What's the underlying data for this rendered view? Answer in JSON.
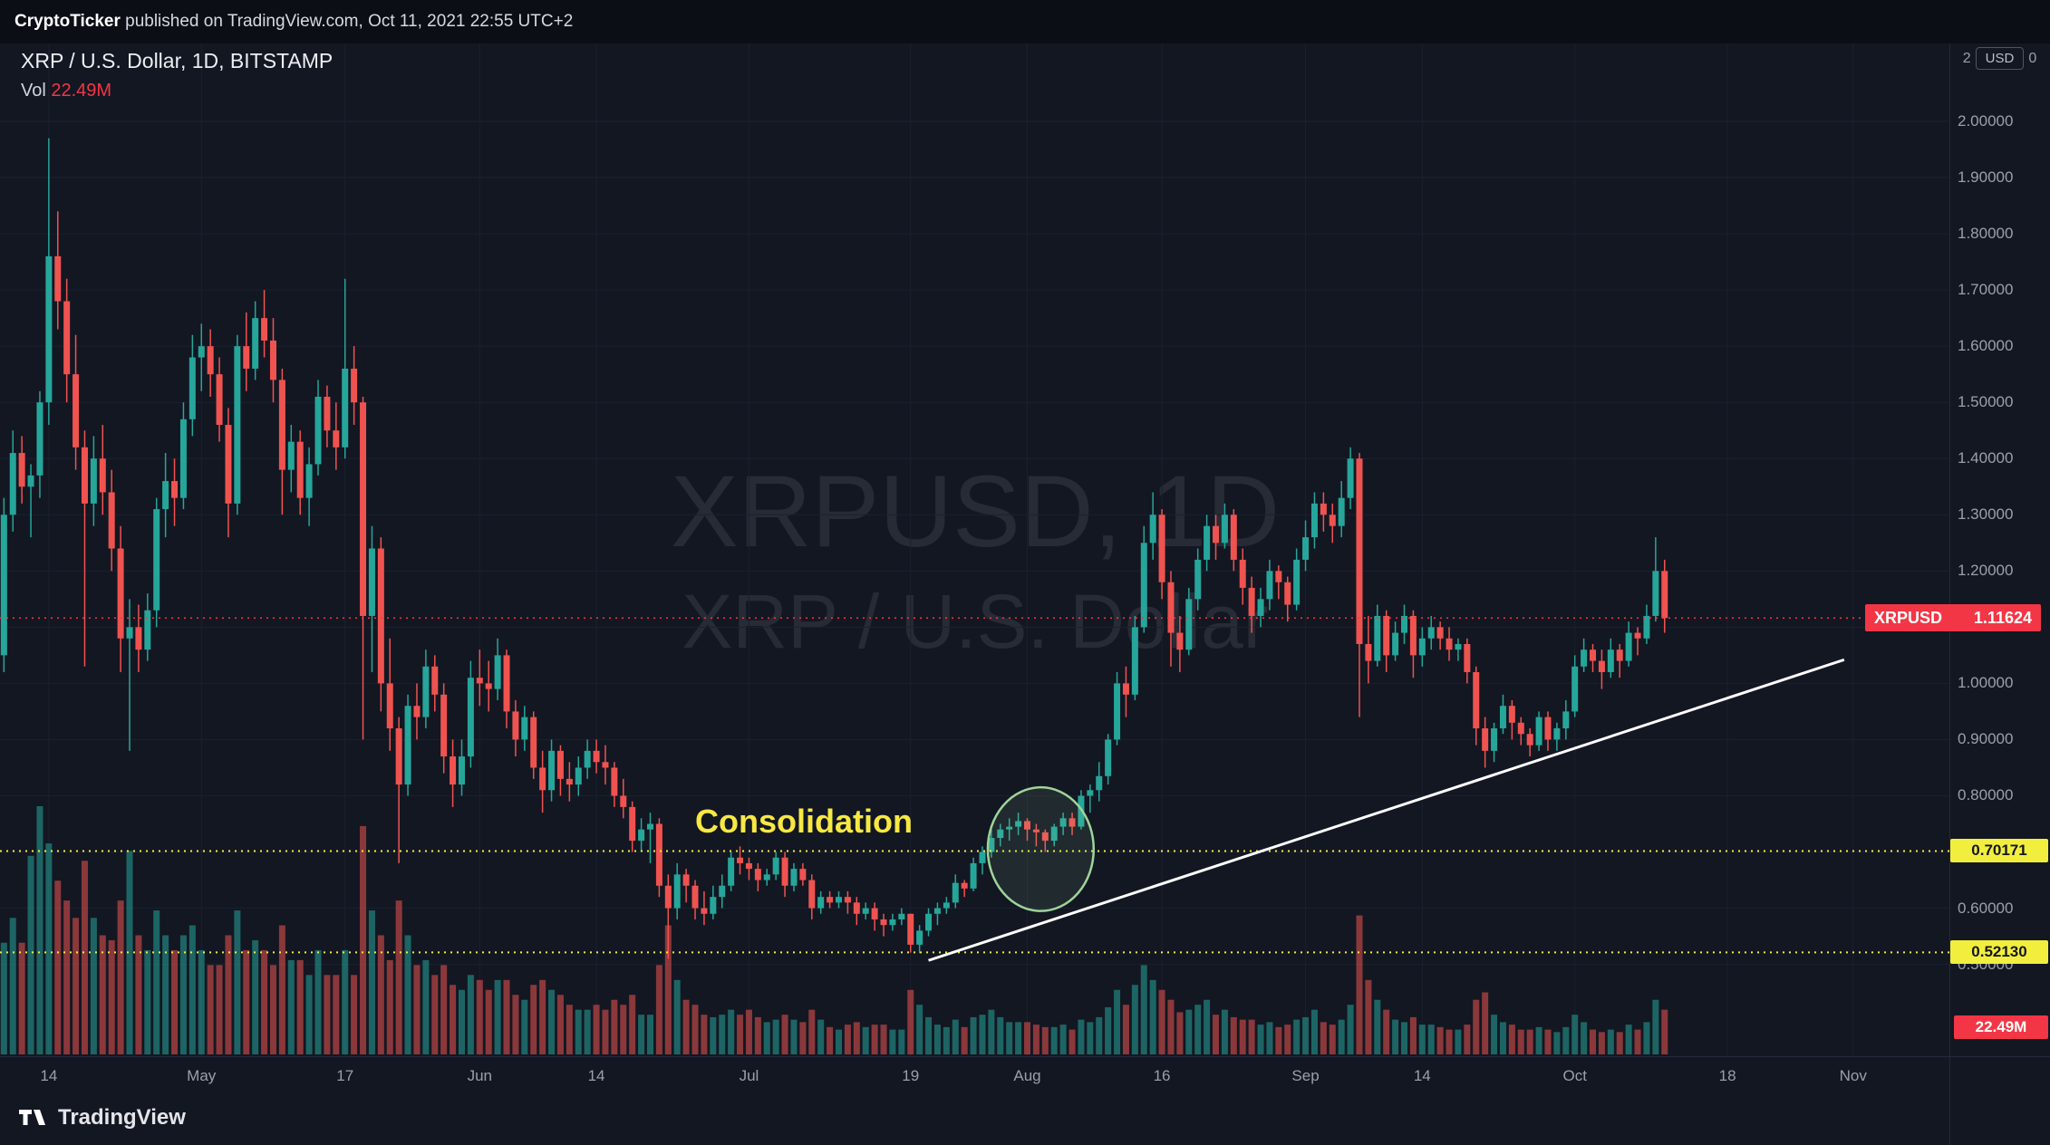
{
  "attribution": {
    "user": "CryptoTicker",
    "rest": " published on TradingView.com, Oct 11, 2021 22:55 UTC+2"
  },
  "legend": {
    "symbol_line": "XRP / U.S. Dollar, 1D, BITSTAMP",
    "vol_label": "Vol",
    "vol_value": "22.49M"
  },
  "watermark": {
    "line1": "XRPUSD, 1D",
    "line2": "XRP / U.S. Dollar"
  },
  "price_axis": {
    "top": {
      "left": "2",
      "button": "USD",
      "right": "0"
    },
    "ticks": [
      "2.00000",
      "1.90000",
      "1.80000",
      "1.70000",
      "1.60000",
      "1.50000",
      "1.40000",
      "1.30000",
      "1.20000",
      "1.10000",
      "1.00000",
      "0.90000",
      "0.80000",
      "0.70000",
      "0.60000",
      "0.50000"
    ],
    "tick_values": [
      2.0,
      1.9,
      1.8,
      1.7,
      1.6,
      1.5,
      1.4,
      1.3,
      1.2,
      1.1,
      1.0,
      0.9,
      0.8,
      0.7,
      0.6,
      0.5
    ]
  },
  "time_axis": {
    "labels": [
      {
        "text": "14",
        "index": 5
      },
      {
        "text": "May",
        "index": 22
      },
      {
        "text": "17",
        "index": 38
      },
      {
        "text": "Jun",
        "index": 53
      },
      {
        "text": "14",
        "index": 66
      },
      {
        "text": "Jul",
        "index": 83
      },
      {
        "text": "19",
        "index": 101
      },
      {
        "text": "Aug",
        "index": 114
      },
      {
        "text": "16",
        "index": 129
      },
      {
        "text": "Sep",
        "index": 145
      },
      {
        "text": "14",
        "index": 158
      },
      {
        "text": "Oct",
        "index": 175
      },
      {
        "text": "18",
        "index": 192
      },
      {
        "text": "Nov",
        "index": 206
      }
    ]
  },
  "price_labels": {
    "symbol_label": {
      "symbol": "XRPUSD",
      "price": "1.11624",
      "value": 1.11624,
      "bg": "#f23645"
    },
    "levels": [
      {
        "text": "0.70171",
        "value": 0.70171,
        "bg": "#f2ee3e"
      },
      {
        "text": "0.52130",
        "value": 0.5213,
        "bg": "#f2ee3e"
      }
    ],
    "volume_label": {
      "text": "22.49M",
      "bg": "#f23645"
    }
  },
  "annotations": {
    "consolidation": {
      "text": "Consolidation",
      "color": "#f7e843",
      "index": 77,
      "price": 0.75
    },
    "ellipse": {
      "center_index": 115.5,
      "center_price": 0.705,
      "rx_days": 5.9,
      "ry_price": 0.11,
      "stroke": "#9ed49b"
    },
    "trendline": {
      "x1_index": 103,
      "y1_price": 0.507,
      "x2_index": 205,
      "y2_price": 1.042,
      "color": "#ffffff"
    }
  },
  "footer": {
    "brand": "TradingView"
  },
  "chart_data": {
    "type": "candlestick",
    "symbol": "XRPUSD",
    "interval": "1D",
    "exchange": "BITSTAMP",
    "last_price": 1.11624,
    "visible_price_range": [
      0.34,
      2.14
    ],
    "support_levels": [
      0.70171,
      0.5213
    ],
    "colors": {
      "up": "#26a69a",
      "down": "#ef5350",
      "bg": "#131722"
    },
    "candles": [
      [
        1.05,
        1.33,
        1.02,
        1.3,
        45
      ],
      [
        1.3,
        1.45,
        1.27,
        1.41,
        55
      ],
      [
        1.41,
        1.44,
        1.32,
        1.35,
        45
      ],
      [
        1.35,
        1.39,
        1.26,
        1.37,
        80
      ],
      [
        1.37,
        1.52,
        1.33,
        1.5,
        100
      ],
      [
        1.5,
        1.97,
        1.46,
        1.76,
        85
      ],
      [
        1.76,
        1.84,
        1.63,
        1.68,
        70
      ],
      [
        1.68,
        1.72,
        1.5,
        1.55,
        62
      ],
      [
        1.55,
        1.62,
        1.38,
        1.42,
        55
      ],
      [
        1.42,
        1.45,
        1.03,
        1.32,
        78
      ],
      [
        1.32,
        1.44,
        1.28,
        1.4,
        55
      ],
      [
        1.4,
        1.46,
        1.3,
        1.34,
        48
      ],
      [
        1.34,
        1.38,
        1.2,
        1.24,
        46
      ],
      [
        1.24,
        1.28,
        1.02,
        1.08,
        62
      ],
      [
        1.08,
        1.15,
        0.88,
        1.1,
        82
      ],
      [
        1.1,
        1.14,
        1.02,
        1.06,
        48
      ],
      [
        1.06,
        1.16,
        1.04,
        1.13,
        42
      ],
      [
        1.13,
        1.33,
        1.1,
        1.31,
        58
      ],
      [
        1.31,
        1.41,
        1.26,
        1.36,
        48
      ],
      [
        1.36,
        1.4,
        1.28,
        1.33,
        42
      ],
      [
        1.33,
        1.5,
        1.31,
        1.47,
        48
      ],
      [
        1.47,
        1.62,
        1.44,
        1.58,
        52
      ],
      [
        1.58,
        1.64,
        1.52,
        1.6,
        42
      ],
      [
        1.6,
        1.63,
        1.51,
        1.55,
        36
      ],
      [
        1.55,
        1.58,
        1.43,
        1.46,
        36
      ],
      [
        1.46,
        1.49,
        1.26,
        1.32,
        48
      ],
      [
        1.32,
        1.62,
        1.3,
        1.6,
        58
      ],
      [
        1.6,
        1.66,
        1.52,
        1.56,
        42
      ],
      [
        1.56,
        1.68,
        1.54,
        1.65,
        46
      ],
      [
        1.65,
        1.7,
        1.58,
        1.61,
        42
      ],
      [
        1.61,
        1.65,
        1.5,
        1.54,
        36
      ],
      [
        1.54,
        1.56,
        1.3,
        1.38,
        52
      ],
      [
        1.38,
        1.46,
        1.34,
        1.43,
        38
      ],
      [
        1.43,
        1.45,
        1.3,
        1.33,
        38
      ],
      [
        1.33,
        1.42,
        1.28,
        1.39,
        32
      ],
      [
        1.39,
        1.54,
        1.37,
        1.51,
        42
      ],
      [
        1.51,
        1.53,
        1.42,
        1.45,
        32
      ],
      [
        1.45,
        1.5,
        1.38,
        1.42,
        32
      ],
      [
        1.42,
        1.72,
        1.4,
        1.56,
        42
      ],
      [
        1.56,
        1.6,
        1.46,
        1.5,
        32
      ],
      [
        1.5,
        1.51,
        0.9,
        1.12,
        92
      ],
      [
        1.12,
        1.28,
        1.02,
        1.24,
        58
      ],
      [
        1.24,
        1.26,
        0.95,
        1.0,
        48
      ],
      [
        1.0,
        1.08,
        0.88,
        0.92,
        38
      ],
      [
        0.92,
        0.94,
        0.68,
        0.82,
        62
      ],
      [
        0.82,
        0.98,
        0.8,
        0.96,
        48
      ],
      [
        0.96,
        1.0,
        0.9,
        0.94,
        36
      ],
      [
        0.94,
        1.06,
        0.92,
        1.03,
        38
      ],
      [
        1.03,
        1.05,
        0.95,
        0.98,
        32
      ],
      [
        0.98,
        1.0,
        0.84,
        0.87,
        36
      ],
      [
        0.87,
        0.9,
        0.78,
        0.82,
        28
      ],
      [
        0.82,
        0.9,
        0.8,
        0.87,
        26
      ],
      [
        0.87,
        1.04,
        0.85,
        1.01,
        32
      ],
      [
        1.01,
        1.06,
        0.96,
        1.0,
        30
      ],
      [
        1.0,
        1.04,
        0.95,
        0.99,
        26
      ],
      [
        0.99,
        1.08,
        0.97,
        1.05,
        30
      ],
      [
        1.05,
        1.06,
        0.92,
        0.95,
        30
      ],
      [
        0.95,
        0.97,
        0.87,
        0.9,
        24
      ],
      [
        0.9,
        0.96,
        0.88,
        0.94,
        22
      ],
      [
        0.94,
        0.95,
        0.83,
        0.85,
        28
      ],
      [
        0.85,
        0.88,
        0.77,
        0.81,
        30
      ],
      [
        0.81,
        0.9,
        0.79,
        0.88,
        26
      ],
      [
        0.88,
        0.89,
        0.8,
        0.83,
        24
      ],
      [
        0.83,
        0.86,
        0.79,
        0.82,
        20
      ],
      [
        0.82,
        0.87,
        0.8,
        0.85,
        18
      ],
      [
        0.85,
        0.9,
        0.83,
        0.88,
        18
      ],
      [
        0.88,
        0.9,
        0.84,
        0.86,
        20
      ],
      [
        0.86,
        0.89,
        0.82,
        0.85,
        18
      ],
      [
        0.85,
        0.86,
        0.78,
        0.8,
        22
      ],
      [
        0.8,
        0.83,
        0.76,
        0.78,
        20
      ],
      [
        0.78,
        0.79,
        0.7,
        0.72,
        24
      ],
      [
        0.72,
        0.76,
        0.7,
        0.74,
        16
      ],
      [
        0.74,
        0.77,
        0.68,
        0.75,
        16
      ],
      [
        0.75,
        0.76,
        0.62,
        0.64,
        36
      ],
      [
        0.64,
        0.66,
        0.51,
        0.6,
        52
      ],
      [
        0.6,
        0.68,
        0.58,
        0.66,
        30
      ],
      [
        0.66,
        0.67,
        0.61,
        0.64,
        22
      ],
      [
        0.64,
        0.65,
        0.58,
        0.6,
        20
      ],
      [
        0.6,
        0.63,
        0.57,
        0.59,
        16
      ],
      [
        0.59,
        0.64,
        0.58,
        0.62,
        15
      ],
      [
        0.62,
        0.66,
        0.6,
        0.64,
        16
      ],
      [
        0.64,
        0.7,
        0.63,
        0.69,
        18
      ],
      [
        0.69,
        0.71,
        0.66,
        0.68,
        16
      ],
      [
        0.68,
        0.69,
        0.65,
        0.67,
        18
      ],
      [
        0.67,
        0.68,
        0.63,
        0.65,
        15
      ],
      [
        0.65,
        0.67,
        0.64,
        0.66,
        13
      ],
      [
        0.66,
        0.7,
        0.65,
        0.69,
        14
      ],
      [
        0.69,
        0.7,
        0.62,
        0.64,
        16
      ],
      [
        0.64,
        0.68,
        0.63,
        0.67,
        14
      ],
      [
        0.67,
        0.68,
        0.64,
        0.65,
        13
      ],
      [
        0.65,
        0.66,
        0.58,
        0.6,
        18
      ],
      [
        0.6,
        0.63,
        0.59,
        0.62,
        14
      ],
      [
        0.62,
        0.63,
        0.6,
        0.61,
        11
      ],
      [
        0.61,
        0.63,
        0.6,
        0.62,
        10
      ],
      [
        0.62,
        0.63,
        0.59,
        0.61,
        12
      ],
      [
        0.61,
        0.62,
        0.57,
        0.59,
        13
      ],
      [
        0.59,
        0.61,
        0.58,
        0.6,
        11
      ],
      [
        0.6,
        0.61,
        0.56,
        0.58,
        12
      ],
      [
        0.58,
        0.59,
        0.55,
        0.57,
        12
      ],
      [
        0.57,
        0.59,
        0.56,
        0.58,
        10
      ],
      [
        0.58,
        0.6,
        0.57,
        0.59,
        10
      ],
      [
        0.59,
        0.59,
        0.521,
        0.535,
        26
      ],
      [
        0.535,
        0.57,
        0.52,
        0.56,
        20
      ],
      [
        0.56,
        0.6,
        0.55,
        0.59,
        15
      ],
      [
        0.59,
        0.61,
        0.57,
        0.6,
        12
      ],
      [
        0.6,
        0.62,
        0.59,
        0.61,
        11
      ],
      [
        0.61,
        0.66,
        0.6,
        0.645,
        14
      ],
      [
        0.645,
        0.65,
        0.62,
        0.635,
        11
      ],
      [
        0.635,
        0.69,
        0.63,
        0.68,
        15
      ],
      [
        0.68,
        0.71,
        0.66,
        0.7,
        16
      ],
      [
        0.7,
        0.74,
        0.69,
        0.725,
        18
      ],
      [
        0.725,
        0.75,
        0.71,
        0.74,
        15
      ],
      [
        0.74,
        0.76,
        0.72,
        0.745,
        13
      ],
      [
        0.745,
        0.77,
        0.73,
        0.755,
        13
      ],
      [
        0.755,
        0.76,
        0.72,
        0.74,
        13
      ],
      [
        0.74,
        0.75,
        0.71,
        0.735,
        12
      ],
      [
        0.735,
        0.74,
        0.7,
        0.72,
        11
      ],
      [
        0.72,
        0.75,
        0.71,
        0.745,
        11
      ],
      [
        0.745,
        0.77,
        0.73,
        0.76,
        12
      ],
      [
        0.76,
        0.77,
        0.73,
        0.745,
        10
      ],
      [
        0.745,
        0.81,
        0.74,
        0.8,
        14
      ],
      [
        0.8,
        0.82,
        0.77,
        0.81,
        13
      ],
      [
        0.81,
        0.86,
        0.79,
        0.835,
        15
      ],
      [
        0.835,
        0.91,
        0.82,
        0.9,
        19
      ],
      [
        0.9,
        1.02,
        0.89,
        1.0,
        26
      ],
      [
        1.0,
        1.03,
        0.94,
        0.98,
        20
      ],
      [
        0.98,
        1.12,
        0.97,
        1.1,
        28
      ],
      [
        1.1,
        1.28,
        1.09,
        1.25,
        36
      ],
      [
        1.25,
        1.34,
        1.22,
        1.3,
        30
      ],
      [
        1.3,
        1.31,
        1.15,
        1.18,
        26
      ],
      [
        1.18,
        1.2,
        1.03,
        1.09,
        22
      ],
      [
        1.09,
        1.12,
        1.02,
        1.06,
        17
      ],
      [
        1.06,
        1.17,
        1.05,
        1.15,
        18
      ],
      [
        1.15,
        1.24,
        1.13,
        1.22,
        20
      ],
      [
        1.22,
        1.3,
        1.2,
        1.28,
        22
      ],
      [
        1.28,
        1.3,
        1.22,
        1.25,
        16
      ],
      [
        1.25,
        1.32,
        1.24,
        1.3,
        18
      ],
      [
        1.3,
        1.31,
        1.2,
        1.22,
        15
      ],
      [
        1.22,
        1.24,
        1.14,
        1.17,
        14
      ],
      [
        1.17,
        1.19,
        1.09,
        1.12,
        14
      ],
      [
        1.12,
        1.17,
        1.1,
        1.15,
        12
      ],
      [
        1.15,
        1.22,
        1.13,
        1.2,
        13
      ],
      [
        1.2,
        1.21,
        1.15,
        1.18,
        11
      ],
      [
        1.18,
        1.19,
        1.11,
        1.14,
        12
      ],
      [
        1.14,
        1.24,
        1.13,
        1.22,
        14
      ],
      [
        1.22,
        1.29,
        1.2,
        1.26,
        15
      ],
      [
        1.26,
        1.34,
        1.24,
        1.32,
        18
      ],
      [
        1.32,
        1.34,
        1.27,
        1.3,
        13
      ],
      [
        1.3,
        1.32,
        1.25,
        1.28,
        12
      ],
      [
        1.28,
        1.36,
        1.26,
        1.33,
        14
      ],
      [
        1.33,
        1.42,
        1.31,
        1.4,
        20
      ],
      [
        1.4,
        1.41,
        0.94,
        1.07,
        56
      ],
      [
        1.07,
        1.12,
        1.0,
        1.04,
        30
      ],
      [
        1.04,
        1.14,
        1.03,
        1.12,
        22
      ],
      [
        1.12,
        1.13,
        1.02,
        1.05,
        18
      ],
      [
        1.05,
        1.11,
        1.04,
        1.09,
        14
      ],
      [
        1.09,
        1.14,
        1.07,
        1.12,
        13
      ],
      [
        1.12,
        1.13,
        1.01,
        1.05,
        15
      ],
      [
        1.05,
        1.1,
        1.03,
        1.08,
        12
      ],
      [
        1.08,
        1.12,
        1.06,
        1.1,
        12
      ],
      [
        1.1,
        1.11,
        1.06,
        1.08,
        11
      ],
      [
        1.08,
        1.1,
        1.04,
        1.06,
        10
      ],
      [
        1.06,
        1.08,
        1.04,
        1.07,
        10
      ],
      [
        1.07,
        1.08,
        1.0,
        1.02,
        12
      ],
      [
        1.02,
        1.03,
        0.89,
        0.92,
        22
      ],
      [
        0.92,
        0.94,
        0.85,
        0.88,
        25
      ],
      [
        0.88,
        0.93,
        0.86,
        0.92,
        16
      ],
      [
        0.92,
        0.98,
        0.91,
        0.96,
        13
      ],
      [
        0.96,
        0.97,
        0.9,
        0.93,
        12
      ],
      [
        0.93,
        0.94,
        0.89,
        0.91,
        10
      ],
      [
        0.91,
        0.92,
        0.87,
        0.89,
        10
      ],
      [
        0.89,
        0.95,
        0.88,
        0.94,
        11
      ],
      [
        0.94,
        0.95,
        0.88,
        0.9,
        10
      ],
      [
        0.9,
        0.93,
        0.88,
        0.92,
        9
      ],
      [
        0.92,
        0.97,
        0.9,
        0.95,
        11
      ],
      [
        0.95,
        1.05,
        0.94,
        1.03,
        16
      ],
      [
        1.03,
        1.08,
        1.02,
        1.06,
        13
      ],
      [
        1.06,
        1.07,
        1.02,
        1.04,
        10
      ],
      [
        1.04,
        1.06,
        0.99,
        1.02,
        9
      ],
      [
        1.02,
        1.08,
        1.01,
        1.06,
        10
      ],
      [
        1.06,
        1.07,
        1.01,
        1.04,
        9
      ],
      [
        1.04,
        1.11,
        1.03,
        1.09,
        12
      ],
      [
        1.09,
        1.1,
        1.05,
        1.08,
        10
      ],
      [
        1.08,
        1.14,
        1.07,
        1.12,
        13
      ],
      [
        1.12,
        1.26,
        1.11,
        1.2,
        22
      ],
      [
        1.2,
        1.22,
        1.09,
        1.11624,
        18
      ]
    ]
  }
}
